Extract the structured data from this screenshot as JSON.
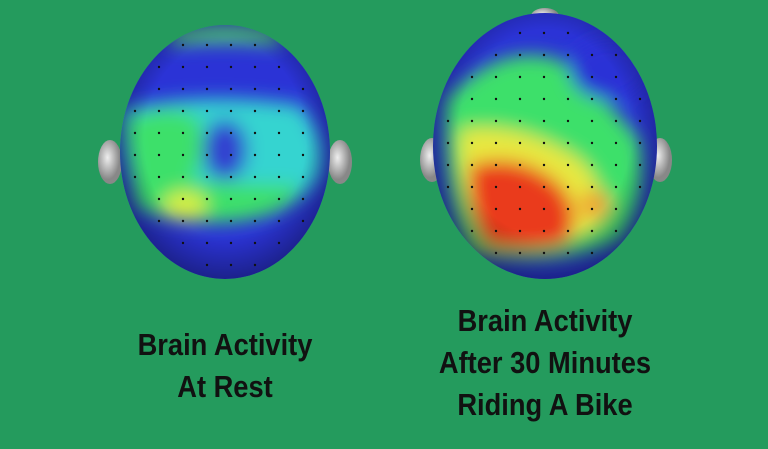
{
  "background_color": "#249b5d",
  "heatmap_colors": {
    "low": "#2b33d6",
    "mid": "#3ee06a",
    "high": "#f2f23a",
    "peak": "#e8301c"
  },
  "panels": [
    {
      "caption_lines": [
        "Brain Activity",
        "At Rest"
      ]
    },
    {
      "caption_lines": [
        "Brain Activity",
        "After 30 Minutes",
        "Riding A Bike"
      ]
    }
  ]
}
